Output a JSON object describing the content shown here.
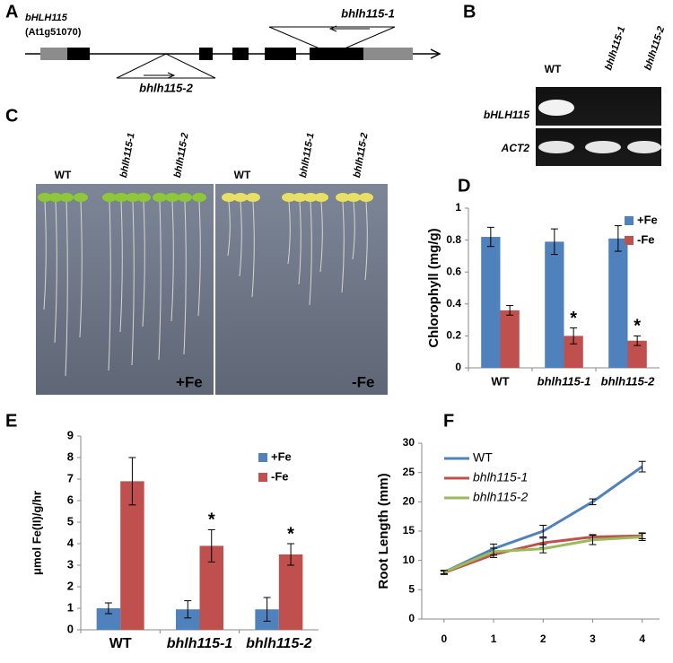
{
  "panel_labels": [
    "A",
    "B",
    "C",
    "D",
    "E",
    "F"
  ],
  "gene_diagram": {
    "gene": "bHLH115",
    "locus": "(At1g51070)",
    "insertions": [
      "bhlh115-1",
      "bhlh115-2"
    ]
  },
  "gel": {
    "lanes": [
      "WT",
      "bhlh115-1",
      "bhlh115-2"
    ],
    "rows": [
      "bHLH115",
      "ACT2"
    ]
  },
  "seedlings": {
    "lanes": [
      "WT",
      "bhlh115-1",
      "bhlh115-2"
    ],
    "conditions": [
      "+Fe",
      "-Fe"
    ]
  },
  "chart_data": [
    {
      "type": "bar",
      "y_label": "Chlorophyll (mg/g)",
      "categories": [
        "WT",
        "bhlh115-1",
        "bhlh115-2"
      ],
      "series": [
        {
          "name": "+Fe",
          "color": "#4f81bd",
          "values": [
            0.82,
            0.79,
            0.81
          ],
          "errors": [
            0.06,
            0.08,
            0.08
          ],
          "significant": [
            null,
            null,
            null
          ]
        },
        {
          "name": "-Fe",
          "color": "#c0504d",
          "values": [
            0.36,
            0.2,
            0.17
          ],
          "errors": [
            0.03,
            0.05,
            0.03
          ],
          "significant": [
            null,
            "*",
            "*"
          ]
        }
      ],
      "ylim": [
        0,
        1
      ],
      "yticks": [
        0,
        0.2,
        0.4,
        0.6,
        0.8,
        1
      ],
      "legend": "upper right"
    },
    {
      "type": "bar",
      "y_label": "μmol Fe(II)/g/hr",
      "categories": [
        "WT",
        "bhlh115-1",
        "bhlh115-2"
      ],
      "series": [
        {
          "name": "+Fe",
          "color": "#4f81bd",
          "values": [
            1.0,
            0.95,
            0.95
          ],
          "errors": [
            0.25,
            0.4,
            0.55
          ],
          "significant": [
            null,
            null,
            null
          ]
        },
        {
          "name": "-Fe",
          "color": "#c0504d",
          "values": [
            6.9,
            3.9,
            3.5
          ],
          "errors": [
            1.1,
            0.75,
            0.5
          ],
          "significant": [
            null,
            "*",
            "*"
          ]
        }
      ],
      "ylim": [
        0,
        9
      ],
      "yticks": [
        0,
        1,
        2,
        3,
        4,
        5,
        6,
        7,
        8,
        9
      ],
      "legend": "upper right"
    },
    {
      "type": "line",
      "y_label": "Root Length (mm)",
      "x": [
        0,
        1,
        2,
        3,
        4
      ],
      "series": [
        {
          "name": "WT",
          "color": "#4f81bd",
          "values": [
            8,
            12,
            15,
            20,
            26
          ],
          "errors": [
            0.3,
            0.8,
            1,
            0.5,
            0.9
          ]
        },
        {
          "name": "bhlh115-1",
          "color": "#c0504d",
          "values": [
            7.9,
            11,
            13,
            14,
            14.2
          ],
          "errors": [
            0.3,
            0.5,
            0.8,
            0.4,
            0.5
          ]
        },
        {
          "name": "bhlh115-2",
          "color": "#9bbb59",
          "values": [
            8,
            11.5,
            12,
            13.5,
            14
          ],
          "errors": [
            0.3,
            0.6,
            0.7,
            0.8,
            0.6
          ]
        }
      ],
      "xlim": [
        -0.45,
        4.35
      ],
      "xticks": [
        0,
        1,
        2,
        3,
        4
      ],
      "ylim": [
        0,
        30
      ],
      "yticks": [
        0,
        5,
        10,
        15,
        20,
        25,
        30
      ],
      "legend": "upper left"
    }
  ]
}
